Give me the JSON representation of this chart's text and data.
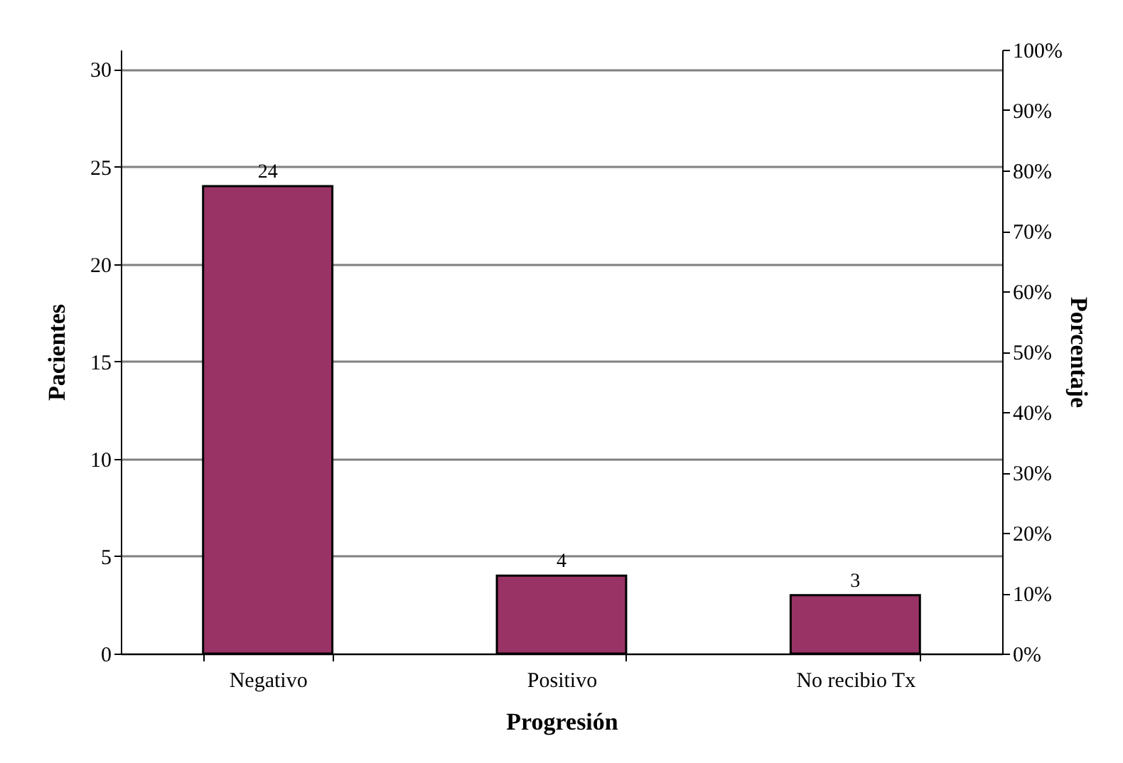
{
  "chart_data": {
    "type": "bar",
    "xlabel": "Progresión",
    "ylabel": "Pacientes",
    "y2label": "Porcentaje",
    "categories": [
      "Negativo",
      "Positivo",
      "No recibio Tx"
    ],
    "values": [
      24,
      4,
      3
    ],
    "color": "#993366",
    "ylim": [
      0,
      31
    ],
    "yticks": [
      0,
      5,
      10,
      15,
      20,
      25,
      30
    ],
    "y2lim": [
      0,
      100
    ],
    "y2ticks": [
      {
        "value": 0,
        "label": "0%"
      },
      {
        "value": 10,
        "label": "10%"
      },
      {
        "value": 20,
        "label": "20%"
      },
      {
        "value": 30,
        "label": "30%"
      },
      {
        "value": 40,
        "label": "40%"
      },
      {
        "value": 50,
        "label": "50%"
      },
      {
        "value": 60,
        "label": "60%"
      },
      {
        "value": 70,
        "label": "70%"
      },
      {
        "value": 80,
        "label": "80%"
      },
      {
        "value": 90,
        "label": "90%"
      },
      {
        "value": 100,
        "label": "100%"
      }
    ],
    "grid": "y",
    "data_labels": true
  }
}
